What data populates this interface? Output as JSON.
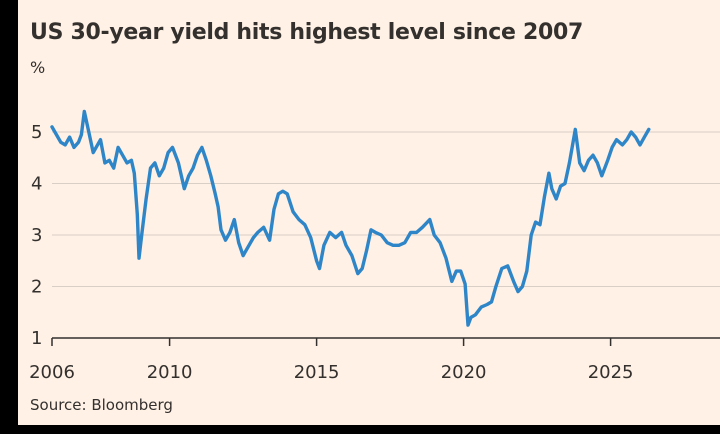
{
  "chart_data": {
    "type": "line",
    "title": "US 30-year yield hits highest level since 2007",
    "ylabel": "%",
    "source": "Source: Bloomberg",
    "xlim": [
      2006,
      2026.3
    ],
    "ylim": [
      1,
      5.25
    ],
    "yticks": [
      "1",
      "2",
      "3",
      "4",
      "5"
    ],
    "xticks": [
      "2006",
      "2010",
      "2015",
      "2020",
      "2025"
    ],
    "grid": true,
    "line_color": "#2e86c8",
    "series": [
      {
        "x": [
          2006.0,
          2006.15,
          2006.3,
          2006.45,
          2006.6,
          2006.75,
          2006.9,
          2007.0,
          2007.1,
          2007.25,
          2007.4,
          2007.5,
          2007.65,
          2007.8,
          2007.95,
          2008.1,
          2008.25,
          2008.4,
          2008.55,
          2008.7,
          2008.8,
          2008.9,
          2008.96,
          2009.05,
          2009.2,
          2009.35,
          2009.5,
          2009.65,
          2009.8,
          2009.95,
          2010.1,
          2010.3,
          2010.5,
          2010.65,
          2010.8,
          2010.95,
          2011.1,
          2011.25,
          2011.4,
          2011.55,
          2011.65,
          2011.75,
          2011.9,
          2012.05,
          2012.2,
          2012.35,
          2012.5,
          2012.7,
          2012.85,
          2013.0,
          2013.2,
          2013.4,
          2013.55,
          2013.7,
          2013.85,
          2014.0,
          2014.2,
          2014.4,
          2014.6,
          2014.8,
          2015.0,
          2015.1,
          2015.25,
          2015.45,
          2015.65,
          2015.85,
          2016.0,
          2016.2,
          2016.4,
          2016.55,
          2016.7,
          2016.85,
          2017.0,
          2017.2,
          2017.4,
          2017.6,
          2017.8,
          2018.0,
          2018.2,
          2018.4,
          2018.6,
          2018.85,
          2019.0,
          2019.2,
          2019.4,
          2019.6,
          2019.75,
          2019.9,
          2020.05,
          2020.15,
          2020.25,
          2020.4,
          2020.6,
          2020.8,
          2020.95,
          2021.1,
          2021.3,
          2021.5,
          2021.7,
          2021.85,
          2022.0,
          2022.15,
          2022.3,
          2022.45,
          2022.6,
          2022.75,
          2022.9,
          2023.0,
          2023.15,
          2023.3,
          2023.45,
          2023.6,
          2023.8,
          2023.95,
          2024.1,
          2024.25,
          2024.4,
          2024.55,
          2024.7,
          2024.9,
          2025.05,
          2025.2,
          2025.4,
          2025.55,
          2025.7,
          2025.85,
          2026.0,
          2026.15,
          2026.3
        ],
        "y": [
          5.1,
          4.95,
          4.8,
          4.75,
          4.9,
          4.7,
          4.8,
          4.95,
          5.4,
          5.0,
          4.6,
          4.7,
          4.85,
          4.4,
          4.45,
          4.3,
          4.7,
          4.55,
          4.4,
          4.45,
          4.2,
          3.4,
          2.55,
          3.0,
          3.7,
          4.3,
          4.4,
          4.15,
          4.3,
          4.6,
          4.7,
          4.4,
          3.9,
          4.15,
          4.3,
          4.55,
          4.7,
          4.45,
          4.15,
          3.8,
          3.55,
          3.1,
          2.9,
          3.05,
          3.3,
          2.85,
          2.6,
          2.8,
          2.95,
          3.05,
          3.15,
          2.9,
          3.5,
          3.8,
          3.85,
          3.8,
          3.45,
          3.3,
          3.2,
          2.95,
          2.5,
          2.35,
          2.8,
          3.05,
          2.95,
          3.05,
          2.8,
          2.6,
          2.25,
          2.35,
          2.7,
          3.1,
          3.05,
          3.0,
          2.85,
          2.8,
          2.8,
          2.85,
          3.05,
          3.05,
          3.15,
          3.3,
          3.0,
          2.85,
          2.55,
          2.1,
          2.3,
          2.3,
          2.05,
          1.25,
          1.4,
          1.45,
          1.6,
          1.65,
          1.7,
          2.0,
          2.35,
          2.4,
          2.1,
          1.9,
          2.0,
          2.3,
          3.0,
          3.25,
          3.2,
          3.75,
          4.2,
          3.9,
          3.7,
          3.95,
          4.0,
          4.4,
          5.05,
          4.4,
          4.25,
          4.45,
          4.55,
          4.4,
          4.15,
          4.45,
          4.7,
          4.85,
          4.75,
          4.85,
          5.0,
          4.9,
          4.75,
          4.9,
          5.05
        ]
      }
    ]
  }
}
